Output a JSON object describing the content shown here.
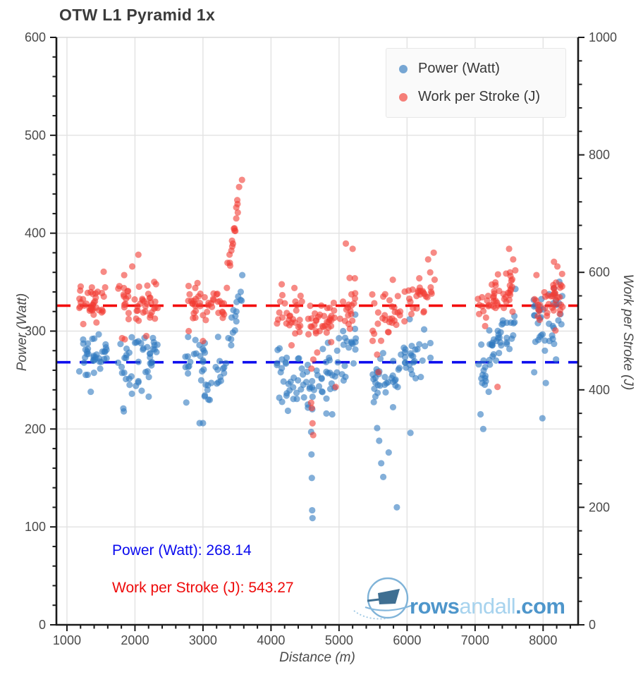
{
  "title": "OTW L1 Pyramid 1x",
  "legend": {
    "items": [
      {
        "label": "Power (Watt)",
        "color": "#3079bf"
      },
      {
        "label": "Work per Stroke (J)",
        "color": "#f23c33"
      }
    ]
  },
  "annotations": {
    "power_average": "Power (Watt): 268.14",
    "wps_average": "Work per Stroke (J): 543.27",
    "power_color": "#0a0aee",
    "wps_color": "#ee0a0a"
  },
  "watermark": {
    "part1": "rows",
    "part2": "andall",
    "part3": ".com"
  },
  "chart_data": {
    "type": "scatter",
    "title": "OTW L1 Pyramid 1x",
    "xlabel": "Distance (m)",
    "ylabel_left": "Power (Watt)",
    "ylabel_right": "Work per Stroke (J)",
    "xlim": [
      845,
      8515
    ],
    "ylim_left": [
      0,
      600
    ],
    "ylim_right": [
      0,
      1000
    ],
    "x_ticks": [
      1000,
      2000,
      3000,
      4000,
      5000,
      6000,
      7000,
      8000
    ],
    "x_minor_step": 200,
    "x_minor_range": [
      1200,
      8400
    ],
    "y_left_ticks": [
      0,
      100,
      200,
      300,
      400,
      500,
      600
    ],
    "y_left_minor_step": 20,
    "y_right_ticks": [
      0,
      200,
      400,
      600,
      800,
      1000
    ],
    "y_right_minor_step": 40,
    "grid": {
      "vertical_at_x_ticks": true,
      "horizontal_at_left_ticks": [
        100,
        200,
        300,
        400,
        500
      ]
    },
    "averages": {
      "power_watt": 268.14,
      "work_per_stroke_j": 543.27
    },
    "reference_lines": [
      {
        "axis": "left",
        "value": 268.14,
        "color": "#0d0dee",
        "style": "dashed"
      },
      {
        "axis": "right",
        "value": 543.27,
        "color": "#f30d0d",
        "style": "dashed"
      }
    ],
    "series": [
      {
        "name": "Power (Watt)",
        "axis": "left",
        "color": "#3079bf",
        "opacity": 0.6,
        "marker_radius": 4.6,
        "clusters": [
          {
            "x": [
              1180,
              1590
            ],
            "n": 36,
            "mean": 274,
            "sd": 11
          },
          {
            "x": [
              1725,
              2340
            ],
            "n": 46,
            "mean": 267,
            "sd": 15
          },
          {
            "x": [
              2730,
              3340
            ],
            "n": 42,
            "mean": 261,
            "sd": 16
          },
          {
            "x": [
              3340,
              3590
            ],
            "n": 16,
            "mean": [
              275,
              352
            ],
            "sd": 8
          },
          {
            "x": [
              4088,
              4680
            ],
            "n": 45,
            "mean": [
              258,
              236
            ],
            "sd": 16
          },
          {
            "x": [
              4680,
              5248
            ],
            "n": 42,
            "mean": [
              240,
              287
            ],
            "sd": 16
          },
          {
            "x": [
              5487,
              6410
            ],
            "n": 60,
            "mean": [
              242,
              285
            ],
            "sd": 15
          },
          {
            "x": [
              7041,
              7600
            ],
            "n": 48,
            "mean": [
              252,
              322
            ],
            "sd": 12
          },
          {
            "x": [
              7860,
              8300
            ],
            "n": 40,
            "mean": 312,
            "sd": 20
          }
        ],
        "outliers": [
          [
            1350,
            238
          ],
          [
            1829,
            221
          ],
          [
            1836,
            218
          ],
          [
            1955,
            236
          ],
          [
            2950,
            206
          ],
          [
            3000,
            206
          ],
          [
            3080,
            230
          ],
          [
            4590,
            197
          ],
          [
            4595,
            174
          ],
          [
            4600,
            150
          ],
          [
            4605,
            117
          ],
          [
            4610,
            109
          ],
          [
            4900,
            215
          ],
          [
            5060,
            300
          ],
          [
            5560,
            201
          ],
          [
            5590,
            188
          ],
          [
            5620,
            165
          ],
          [
            5650,
            151
          ],
          [
            5730,
            176
          ],
          [
            5850,
            120
          ],
          [
            6050,
            196
          ],
          [
            7080,
            215
          ],
          [
            7120,
            200
          ],
          [
            7200,
            238
          ],
          [
            7950,
            294
          ],
          [
            7990,
            211
          ],
          [
            8040,
            247
          ]
        ]
      },
      {
        "name": "Work per Stroke (J)",
        "axis": "right",
        "color": "#f23c33",
        "opacity": 0.6,
        "marker_radius": 4.6,
        "clusters": [
          {
            "x": [
              1180,
              1590
            ],
            "n": 36,
            "mean": 549,
            "sd": 15
          },
          {
            "x": [
              1725,
              2340
            ],
            "n": 46,
            "mean": 549,
            "sd": 22
          },
          {
            "x": [
              2730,
              3340
            ],
            "n": 42,
            "mean": 547,
            "sd": 16
          },
          {
            "x": [
              3340,
              3580
            ],
            "n": 20,
            "mean": [
              575,
              768
            ],
            "sd": 14
          },
          {
            "x": [
              4088,
              4680
            ],
            "n": 44,
            "mean": [
              545,
              505
            ],
            "sd": 20
          },
          {
            "x": [
              4680,
              5248
            ],
            "n": 42,
            "mean": [
              505,
              560
            ],
            "sd": 20
          },
          {
            "x": [
              5487,
              6410
            ],
            "n": 58,
            "mean": [
              505,
              585
            ],
            "sd": 22
          },
          {
            "x": [
              7041,
              7600
            ],
            "n": 48,
            "mean": [
              540,
              580
            ],
            "sd": 16
          },
          {
            "x": [
              7860,
              8300
            ],
            "n": 40,
            "mean": 555,
            "sd": 22
          }
        ],
        "outliers": [
          [
            1240,
            512
          ],
          [
            1540,
            601
          ],
          [
            1810,
            488
          ],
          [
            1850,
            486
          ],
          [
            1960,
            610
          ],
          [
            2050,
            630
          ],
          [
            2790,
            500
          ],
          [
            3000,
            483
          ],
          [
            4590,
            378
          ],
          [
            4600,
            369
          ],
          [
            4610,
            343
          ],
          [
            4620,
            323
          ],
          [
            4950,
            405
          ],
          [
            5100,
            649
          ],
          [
            5200,
            640
          ],
          [
            5560,
            460
          ],
          [
            5580,
            430
          ],
          [
            6310,
            622
          ],
          [
            6340,
            600
          ],
          [
            7330,
            405
          ],
          [
            7500,
            640
          ],
          [
            7560,
            622
          ],
          [
            8160,
            618
          ],
          [
            8210,
            610
          ]
        ]
      }
    ]
  }
}
